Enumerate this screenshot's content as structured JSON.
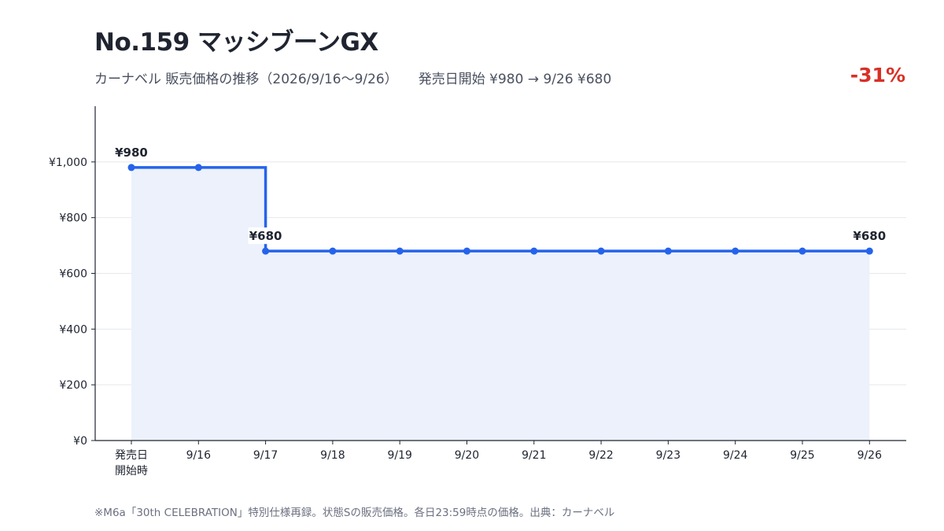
{
  "header": {
    "title": "No.159 マッシブーンGX",
    "subtitle_left": "カーナベル 販売価格の推移（2026/9/16〜9/26）",
    "subtitle_right": "発売日開始 ¥980 → 9/26 ¥680",
    "change": "-31%"
  },
  "footnote": "※M6a「30th CELEBRATION」特別仕様再録。状態Sの販売価格。各日23:59時点の価格。出典：カーナベル",
  "colors": {
    "line": "#2563eb",
    "fill": "#ecf1fc",
    "grid": "#e6e8ec",
    "axis": "#1f2430",
    "change": "#d93025"
  },
  "chart_data": {
    "type": "line",
    "step": true,
    "categories": [
      "発売日\n開始時",
      "9/16",
      "9/17",
      "9/18",
      "9/19",
      "9/20",
      "9/21",
      "9/22",
      "9/23",
      "9/24",
      "9/25",
      "9/26"
    ],
    "series": [
      {
        "values": [
          980,
          980,
          680,
          680,
          680,
          680,
          680,
          680,
          680,
          680,
          680,
          680
        ]
      }
    ],
    "ylim": [
      0,
      1200
    ],
    "yticks": [
      0,
      200,
      400,
      600,
      800,
      1000
    ],
    "ytick_labels": [
      "¥0",
      "¥200",
      "¥400",
      "¥600",
      "¥800",
      "¥1,000"
    ],
    "annotations": [
      {
        "index": 0,
        "text": "¥980"
      },
      {
        "index": 2,
        "text": "¥680"
      },
      {
        "index": 11,
        "text": "¥680"
      }
    ],
    "grid": true,
    "area_fill": true
  }
}
